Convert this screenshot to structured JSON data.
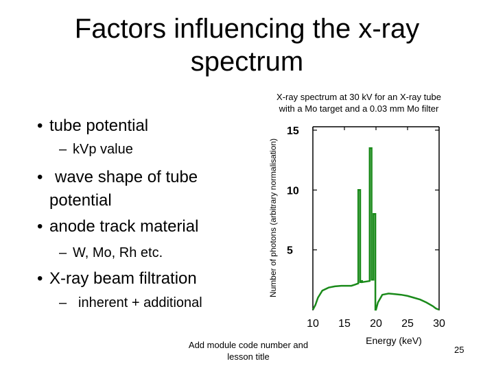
{
  "slide": {
    "title_line1": "Factors influencing the x-ray",
    "title_line2": "spectrum",
    "bullets": [
      {
        "text": "tube potential",
        "sub": "kVp value"
      },
      {
        "text_line1": "wave shape of tube",
        "text_line2": "potential"
      },
      {
        "text": "anode track material",
        "sub": "W, Mo, Rh etc."
      },
      {
        "text": "X-ray beam filtration",
        "sub": "inherent + additional"
      }
    ],
    "footer": "Add module code number and lesson title",
    "page_number": "25",
    "bullet_glyph": "•",
    "dash_glyph": "–"
  },
  "chart_data": {
    "type": "line",
    "title_line1": "X-ray spectrum at 30 kV for an X-ray tube",
    "title_line2": "with a Mo target and a 0.03 mm Mo filter",
    "xlabel": "Energy (keV)",
    "ylabel": "Number of photons (arbitrary normalisation)",
    "x_ticks": [
      10,
      15,
      20,
      25,
      30
    ],
    "y_ticks": [
      5,
      10,
      15
    ],
    "xlim": [
      10,
      30
    ],
    "ylim": [
      0,
      15
    ],
    "series_color": "#1a8a1a",
    "series": [
      {
        "x": [
          10.0,
          10.4,
          10.8,
          11.5,
          12.5,
          13.5,
          14.5,
          15.0,
          15.5,
          16.1,
          16.7,
          17.2,
          17.2,
          17.5,
          17.5,
          17.6,
          17.6,
          17.8,
          17.8,
          19.0,
          19.0,
          19.3,
          19.3,
          19.6,
          19.6,
          19.9,
          19.9,
          20.0,
          20.3,
          21.0,
          22.0,
          23.0,
          24.0,
          25.0,
          26.0,
          27.0,
          28.0,
          29.0,
          29.5,
          30.0
        ],
        "y": [
          0.0,
          0.4,
          1.0,
          1.6,
          1.85,
          1.95,
          2.0,
          2.0,
          2.0,
          2.0,
          2.1,
          2.2,
          10.0,
          10.0,
          2.3,
          2.3,
          2.4,
          2.4,
          2.3,
          2.4,
          13.5,
          13.5,
          2.5,
          2.5,
          8.0,
          8.0,
          0.0,
          0.0,
          0.6,
          1.25,
          1.35,
          1.3,
          1.25,
          1.15,
          1.0,
          0.85,
          0.6,
          0.3,
          0.1,
          0.0
        ]
      }
    ]
  }
}
